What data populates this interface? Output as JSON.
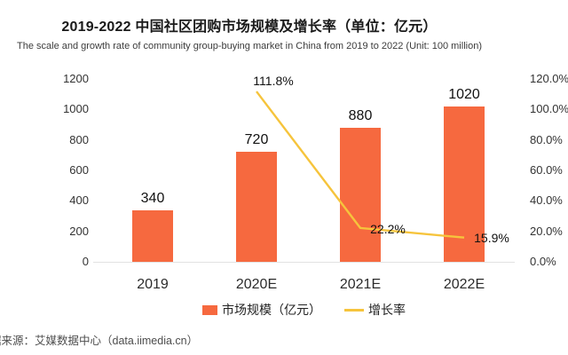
{
  "header": {
    "title": "2019-2022 中国社区团购市场规模及增长率（单位：亿元）",
    "subtitle": "The scale and growth rate of community group-buying market in China from 2019 to 2022 (Unit: 100 million)"
  },
  "chart_data": {
    "type": "bar",
    "categories": [
      "2019",
      "2020E",
      "2021E",
      "2022E"
    ],
    "series": [
      {
        "name": "市场规模（亿元）",
        "type": "bar",
        "axis": "left",
        "values": [
          340,
          720,
          880,
          1020
        ]
      },
      {
        "name": "增长率",
        "type": "line",
        "axis": "right",
        "values": [
          null,
          111.8,
          22.2,
          15.9
        ],
        "point_labels": [
          "",
          "111.8%",
          "22.2%",
          "15.9%"
        ]
      }
    ],
    "title": "2019-2022 中国社区团购市场规模及增长率（单位：亿元）",
    "xlabel": "",
    "ylabel": "",
    "left_axis": {
      "min": 0,
      "max": 1200,
      "step": 200,
      "ticks": [
        "0",
        "200",
        "400",
        "600",
        "800",
        "1000",
        "1200"
      ]
    },
    "right_axis": {
      "min": 0,
      "max": 120,
      "step": 20,
      "ticks": [
        "0.0%",
        "20.0%",
        "40.0%",
        "60.0%",
        "80.0%",
        "100.0%",
        "120.0%"
      ]
    },
    "grid": false,
    "legend_position": "bottom"
  },
  "legend": {
    "bar_label": "市场规模（亿元）",
    "line_label": "增长率"
  },
  "footer": {
    "source_clipped_prefix": "据",
    "source": "来源：艾媒数据中心（data.iimedia.cn）"
  },
  "colors": {
    "bar": "#F6693F",
    "line": "#F6C43C",
    "axis_line": "#E2E2E2",
    "title": "#1A1A1A",
    "text": "#333333",
    "source": "#4D4D4D"
  }
}
